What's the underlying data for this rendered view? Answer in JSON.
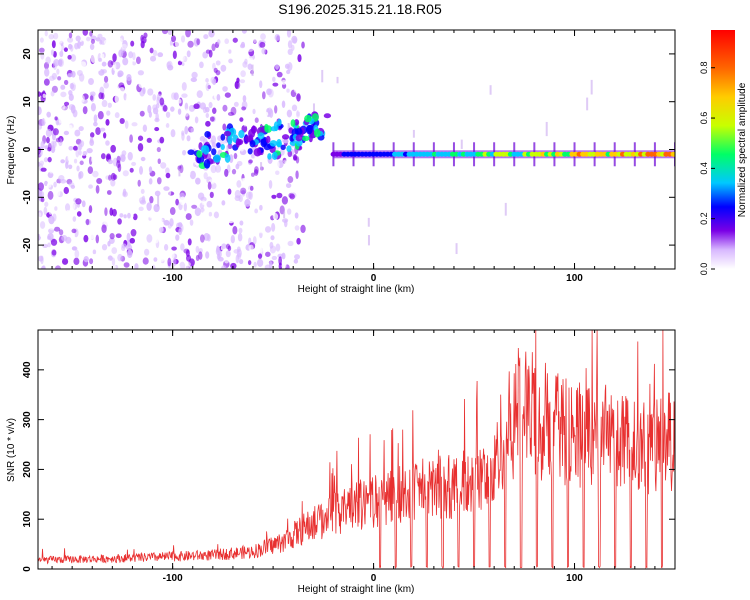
{
  "title": "S196.2025.315.21.18.R05",
  "chart_data": [
    {
      "type": "heatmap",
      "xlabel": "Height of straight line (km)",
      "ylabel": "Frequency (Hz)",
      "xlim": [
        -167,
        150
      ],
      "ylim": [
        -25,
        25
      ],
      "xticks": [
        -100,
        0,
        100
      ],
      "xtick_labels": [
        "-100",
        "0",
        "100"
      ],
      "yticks": [
        -20,
        -10,
        0,
        10,
        20
      ],
      "ytick_labels": [
        "-20",
        "-10",
        "0",
        "10",
        "20"
      ],
      "description_series": [
        {
          "name": "noise band",
          "x_range": [
            -167,
            -65
          ],
          "freq_range": [
            -25,
            25
          ],
          "amplitude": 0.15
        },
        {
          "name": "rising cluster",
          "x": [
            -90,
            -70,
            -50,
            -35,
            -25
          ],
          "freq": [
            -1,
            1,
            2,
            3,
            5
          ],
          "amplitude": 0.3
        },
        {
          "name": "stable line",
          "x_range": [
            -20,
            150
          ],
          "freq": -1,
          "amplitude_start": 0.3,
          "amplitude_end": 0.95
        }
      ],
      "colorbar": {
        "label": "Normalized spectral amplitude",
        "range": [
          0.0,
          0.95
        ],
        "ticks": [
          0.0,
          0.2,
          0.4,
          0.6,
          0.8
        ],
        "tick_labels": [
          "0.0",
          "0.2",
          "0.4",
          "0.6",
          "0.8"
        ],
        "colors": [
          "#ffffff",
          "#d8b8ff",
          "#7a00e6",
          "#0000ff",
          "#00c8ff",
          "#00ff66",
          "#c8ff00",
          "#ffcc00",
          "#ff6600",
          "#ff0000"
        ]
      }
    },
    {
      "type": "line",
      "xlabel": "Height of straight line (km)",
      "ylabel": "SNR (10 * v/v)",
      "xlim": [
        -167,
        150
      ],
      "ylim": [
        0,
        480
      ],
      "xticks": [
        -100,
        0,
        100
      ],
      "xtick_labels": [
        "-100",
        "0",
        "100"
      ],
      "yticks": [
        0,
        100,
        200,
        300,
        400
      ],
      "ytick_labels": [
        "0",
        "100",
        "200",
        "300",
        "400"
      ],
      "series": [
        {
          "name": "SNR",
          "color": "#e83030",
          "x": [
            -167,
            -140,
            -120,
            -100,
            -80,
            -60,
            -45,
            -35,
            -25,
            -15,
            -5,
            5,
            15,
            25,
            35,
            45,
            55,
            60,
            62,
            70,
            78,
            85,
            95,
            105,
            115,
            125,
            135,
            142,
            148,
            150
          ],
          "y": [
            18,
            20,
            22,
            25,
            28,
            35,
            55,
            80,
            100,
            120,
            130,
            140,
            150,
            160,
            165,
            170,
            180,
            190,
            250,
            300,
            320,
            285,
            280,
            270,
            265,
            255,
            245,
            250,
            260,
            240
          ]
        }
      ]
    }
  ]
}
